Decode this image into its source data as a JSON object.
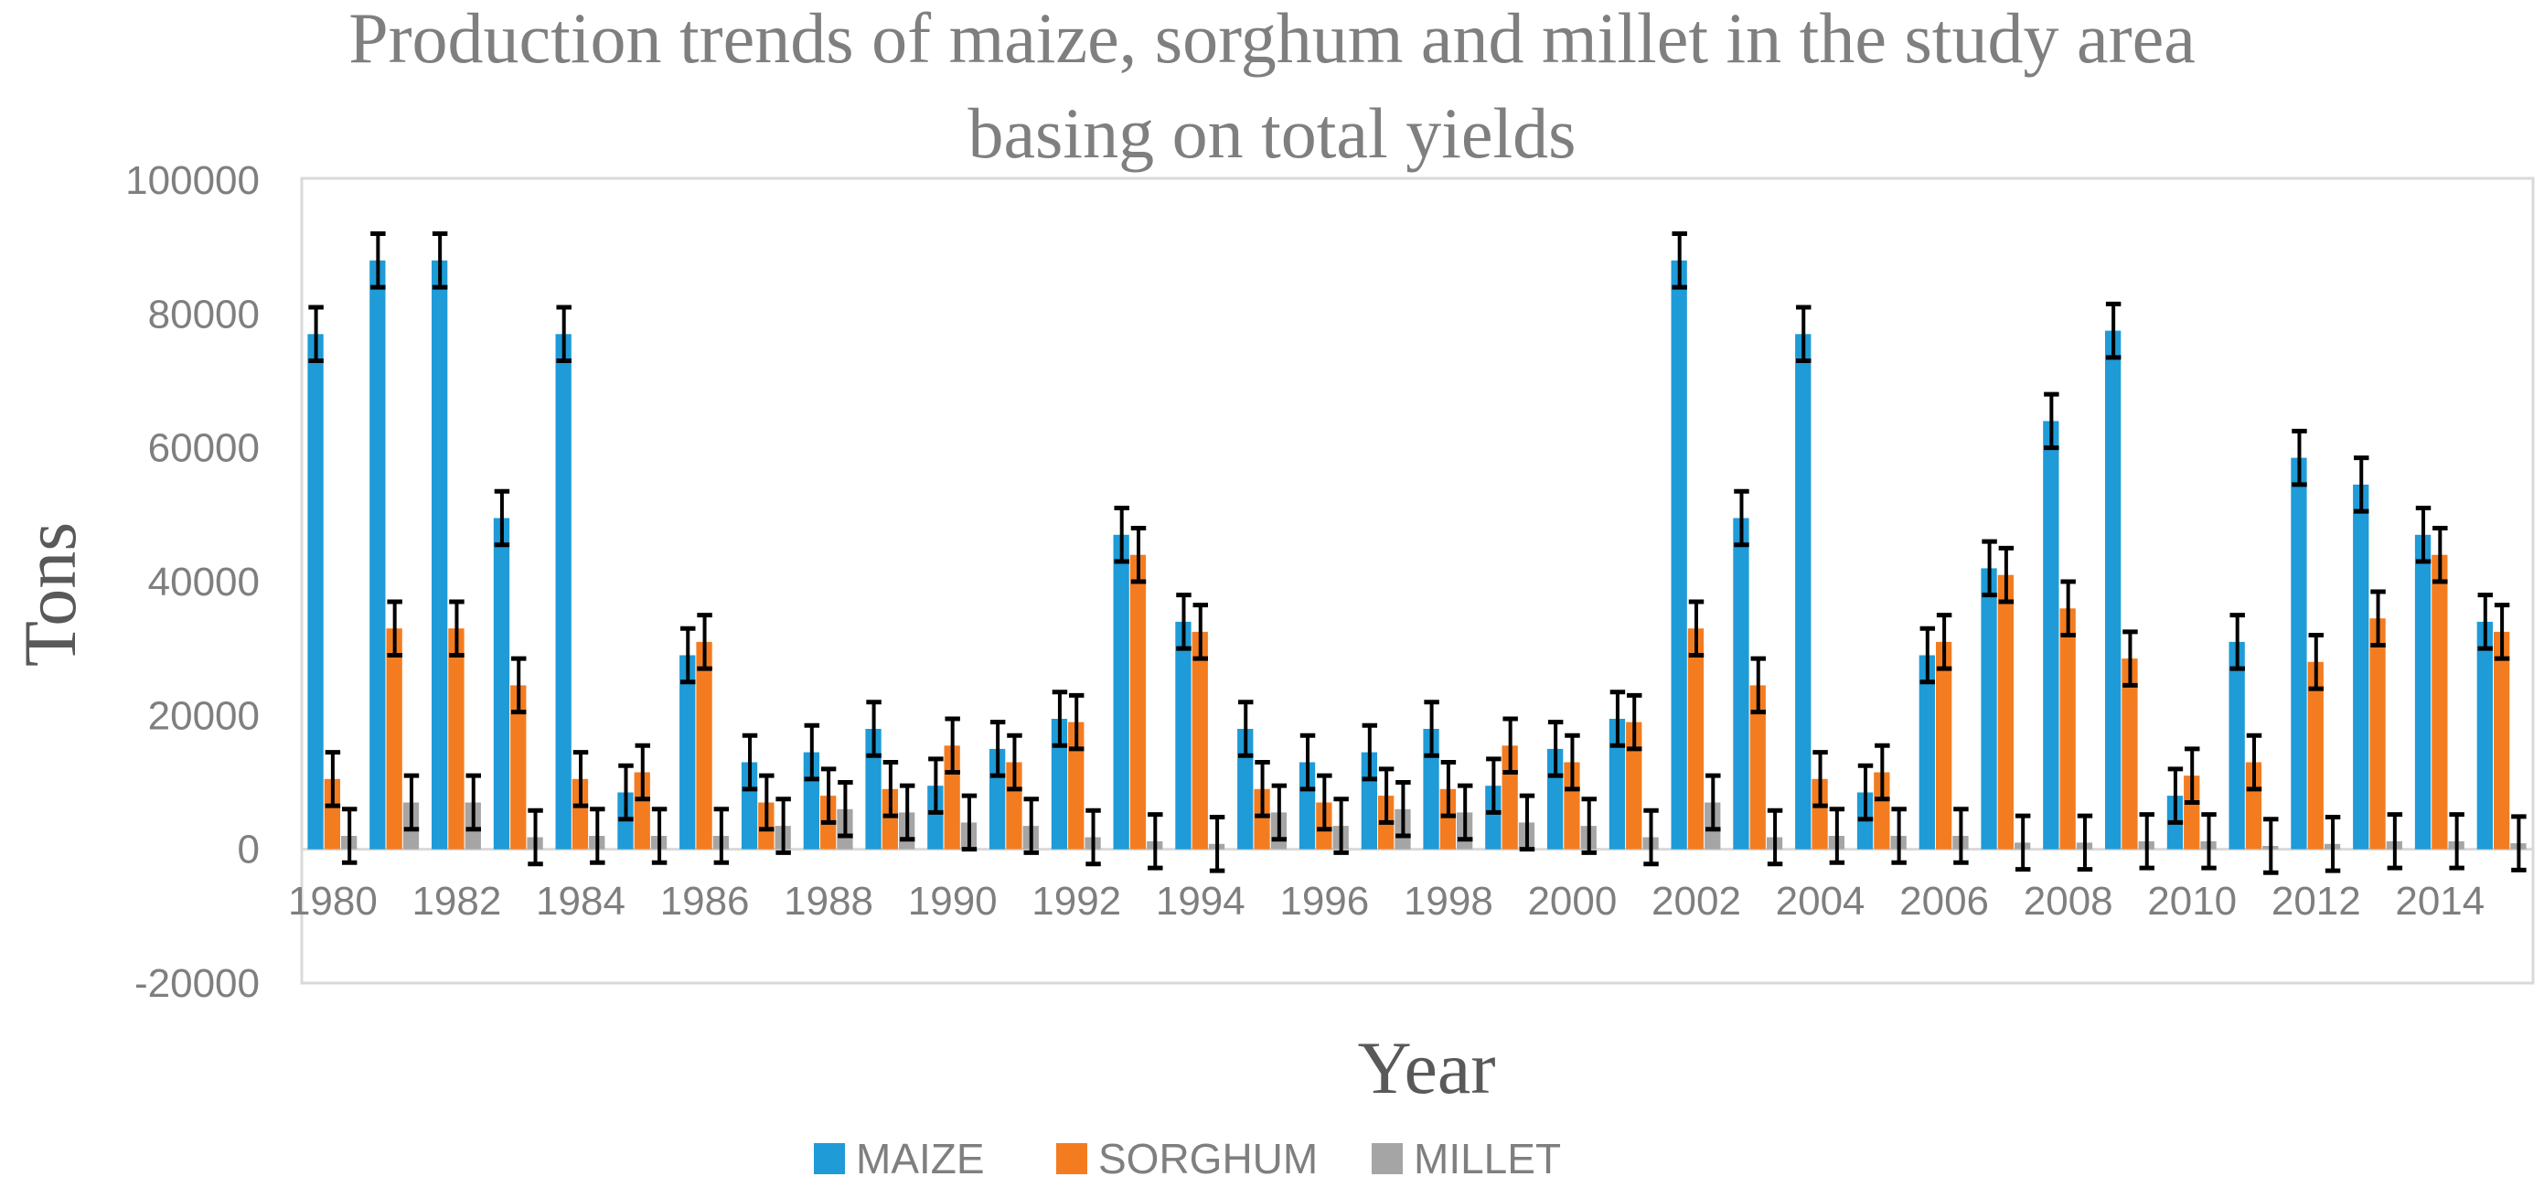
{
  "chart_data": {
    "type": "bar",
    "title_lines": [
      "Production trends of maize, sorghum and millet in the study area",
      "basing on total yields"
    ],
    "xlabel": "Year",
    "ylabel": "Tons",
    "ylim": [
      -20000,
      100000
    ],
    "y_ticks": [
      100000,
      80000,
      60000,
      40000,
      20000,
      0,
      -20000
    ],
    "y_tick_labels": [
      "100000",
      "80000",
      "60000",
      "40000",
      "20000",
      "0",
      "-20000"
    ],
    "categories": [
      "1980",
      "1981",
      "1982",
      "1983",
      "1984",
      "1985",
      "1986",
      "1987",
      "1988",
      "1989",
      "1990",
      "1991",
      "1992",
      "1993",
      "1994",
      "1995",
      "1996",
      "1997",
      "1998",
      "1999",
      "2000",
      "2001",
      "2002",
      "2003",
      "2004",
      "2005",
      "2006",
      "2007",
      "2008",
      "2009",
      "2010",
      "2011",
      "2012",
      "2013",
      "2014",
      "2015"
    ],
    "x_tick_labels": [
      "1980",
      "",
      "1982",
      "",
      "1984",
      "",
      "1986",
      "",
      "1988",
      "",
      "1990",
      "",
      "1992",
      "",
      "1994",
      "",
      "1996",
      "",
      "1998",
      "",
      "2000",
      "",
      "2002",
      "",
      "2004",
      "",
      "2006",
      "",
      "2008",
      "",
      "2010",
      "",
      "2012",
      "",
      "2014",
      ""
    ],
    "error_bar": 4000,
    "grid": false,
    "legend_position": "bottom",
    "series": [
      {
        "name": "MAIZE",
        "color": "#1f9bd7",
        "values": [
          77000,
          88000,
          88000,
          49500,
          77000,
          8500,
          29000,
          13000,
          14500,
          18000,
          9500,
          15000,
          19500,
          47000,
          34000,
          18000,
          13000,
          14500,
          18000,
          9500,
          15000,
          19500,
          88000,
          49500,
          77000,
          8500,
          29000,
          42000,
          64000,
          77500,
          8000,
          31000,
          58500,
          54500,
          47000,
          34000
        ]
      },
      {
        "name": "SORGHUM",
        "color": "#f47c20",
        "values": [
          10500,
          33000,
          33000,
          24500,
          10500,
          11500,
          31000,
          7000,
          8000,
          9000,
          15500,
          13000,
          19000,
          44000,
          32500,
          9000,
          7000,
          8000,
          9000,
          15500,
          13000,
          19000,
          33000,
          24500,
          10500,
          11500,
          31000,
          41000,
          36000,
          28500,
          11000,
          13000,
          28000,
          34500,
          44000,
          32500
        ]
      },
      {
        "name": "MILLET",
        "color": "#a5a5a5",
        "values": [
          2000,
          7000,
          7000,
          1800,
          2000,
          2000,
          2000,
          3500,
          6000,
          5500,
          4000,
          3500,
          1800,
          1200,
          800,
          5500,
          3500,
          6000,
          5500,
          4000,
          3500,
          1800,
          7000,
          1800,
          2000,
          2000,
          2000,
          1000,
          1000,
          1200,
          1200,
          500,
          800,
          1200,
          1200,
          900
        ]
      }
    ]
  }
}
